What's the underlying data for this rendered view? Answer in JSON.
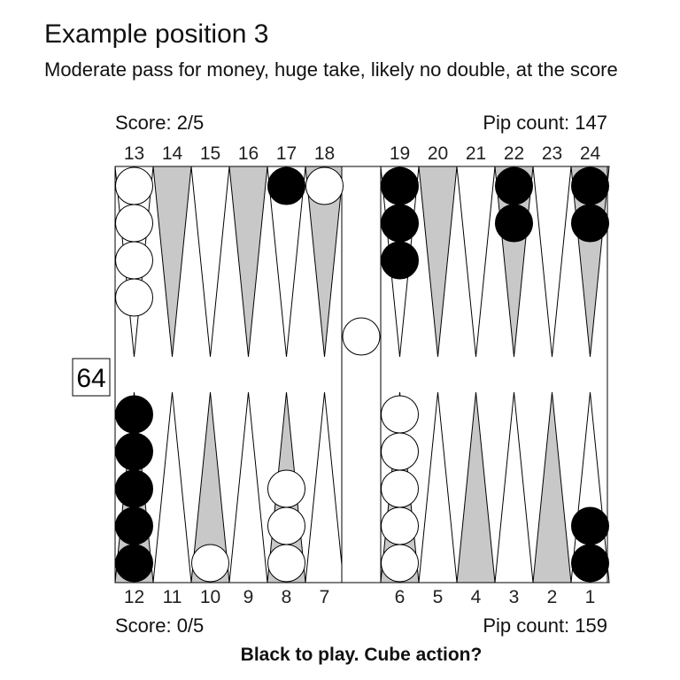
{
  "title": "Example position 3",
  "subtitle": "Moderate pass for money, huge take, likely no double, at the score",
  "top_player": {
    "score": "Score: 2/5",
    "pip_count": "Pip count: 147"
  },
  "bottom_player": {
    "score": "Score: 0/5",
    "pip_count": "Pip count: 159"
  },
  "cube": "64",
  "footer": "Black to play. Cube action?",
  "colors": {
    "shaded_point": "#c8c8c8",
    "white_checker": "#ffffff",
    "black_checker": "#000000"
  },
  "top_point_labels": [
    "13",
    "14",
    "15",
    "16",
    "17",
    "18",
    "19",
    "20",
    "21",
    "22",
    "23",
    "24"
  ],
  "bottom_point_labels": [
    "12",
    "11",
    "10",
    "9",
    "8",
    "7",
    "6",
    "5",
    "4",
    "3",
    "2",
    "1"
  ],
  "checkers": {
    "top": [
      {
        "point": "13",
        "color": "white",
        "count": 4
      },
      {
        "point": "17",
        "color": "black",
        "count": 1
      },
      {
        "point": "18",
        "color": "white",
        "count": 1
      },
      {
        "point": "19",
        "color": "black",
        "count": 3
      },
      {
        "point": "22",
        "color": "black",
        "count": 2
      },
      {
        "point": "24",
        "color": "black",
        "count": 2
      }
    ],
    "bottom": [
      {
        "point": "12",
        "color": "black",
        "count": 5
      },
      {
        "point": "10",
        "color": "white",
        "count": 1
      },
      {
        "point": "8",
        "color": "white",
        "count": 3
      },
      {
        "point": "6",
        "color": "white",
        "count": 5
      },
      {
        "point": "1",
        "color": "black",
        "count": 2
      }
    ],
    "bar": [
      {
        "color": "white",
        "count": 1
      }
    ]
  }
}
